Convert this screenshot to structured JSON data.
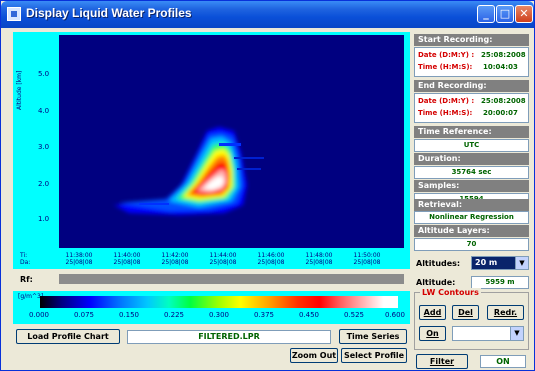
{
  "window": {
    "title": "Display Liquid Water Profiles"
  },
  "plot": {
    "y_label": "Altitude [km]",
    "y_ticks": [
      "5.0",
      "4.0",
      "3.0",
      "2.0",
      "1.0"
    ],
    "row_labels": [
      "Ti:",
      "Da:"
    ],
    "x_ticks": [
      {
        "time": "11:38:00",
        "date": "25|08|08"
      },
      {
        "time": "11:40:00",
        "date": "25|08|08"
      },
      {
        "time": "11:42:00",
        "date": "25|08|08"
      },
      {
        "time": "11:44:00",
        "date": "25|08|08"
      },
      {
        "time": "11:46:00",
        "date": "25|08|08"
      },
      {
        "time": "11:48:00",
        "date": "25|08|08"
      },
      {
        "time": "11:50:00",
        "date": "25|08|08"
      }
    ],
    "rf_label": "Rf:"
  },
  "colorbar": {
    "unit": "[g/m^3]",
    "ticks": [
      "0.000",
      "0.075",
      "0.150",
      "0.225",
      "0.300",
      "0.375",
      "0.450",
      "0.525",
      "0.600"
    ]
  },
  "buttons": {
    "load_profile_chart": "Load Profile Chart",
    "time_series": "Time Series",
    "zoom_out": "Zoom Out",
    "select_profile": "Select Profile",
    "filter": "Filter"
  },
  "file_name": "FILTERED.LPR",
  "filter_state": "ON",
  "right_panel": {
    "start_recording": {
      "header": "Start Recording:",
      "date_label": "Date (D:M:Y) :",
      "date_value": "25:08:2008",
      "time_label": "Time (H:M:S):",
      "time_value": "10:04:03"
    },
    "end_recording": {
      "header": "End Recording:",
      "date_label": "Date (D:M:Y) :",
      "date_value": "25:08:2008",
      "time_label": "Time (H:M:S):",
      "time_value": "20:00:07"
    },
    "time_reference": {
      "header": "Time Reference:",
      "value": "UTC"
    },
    "duration": {
      "header": "Duration:",
      "value": "35764 sec"
    },
    "samples": {
      "header": "Samples:",
      "value": "15594"
    },
    "retrieval": {
      "header": "Retrieval:",
      "value": "Nonlinear Regression"
    },
    "altitude_layers": {
      "header": "Altitude Layers:",
      "value": "70"
    },
    "altitudes": {
      "label": "Altitudes:",
      "value": "20 m"
    },
    "altitude": {
      "label": "Altitude:",
      "value": "5959 m"
    }
  },
  "lw_contours": {
    "title": "LW Contours",
    "add": "Add",
    "del": "Del",
    "redr": "Redr.",
    "on": "On"
  },
  "colors": {
    "plot_background": "#000080",
    "frame": "#00ffff",
    "accent_red": "#d40000",
    "value_green": "#006400"
  }
}
